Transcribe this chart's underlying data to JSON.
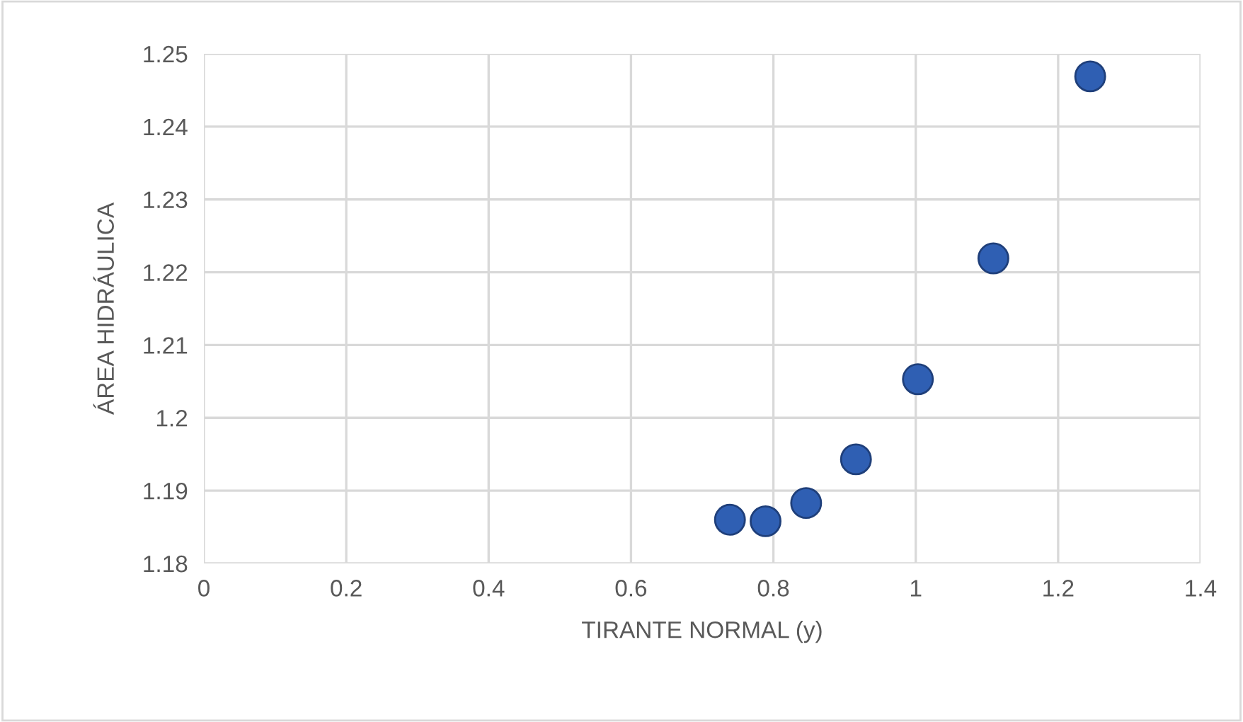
{
  "chart_data": {
    "type": "scatter",
    "xlabel": "TIRANTE NORMAL (y)",
    "ylabel": "ÁREA HIDRÁULICA",
    "x": [
      0.739,
      0.789,
      0.846,
      0.916,
      1.003,
      1.109,
      1.245
    ],
    "values": [
      1.186,
      1.1858,
      1.1883,
      1.1943,
      1.2053,
      1.2219,
      1.2469
    ],
    "color": "#2f5fb3",
    "marker": "circle",
    "grid": true,
    "xlim": [
      0,
      1.4
    ],
    "xticks": [
      0,
      0.2,
      0.4,
      0.6,
      0.8,
      1,
      1.2,
      1.4
    ],
    "ylim": [
      1.18,
      1.25
    ],
    "yticks": [
      1.18,
      1.19,
      1.2,
      1.21,
      1.22,
      1.23,
      1.24,
      1.25
    ]
  }
}
